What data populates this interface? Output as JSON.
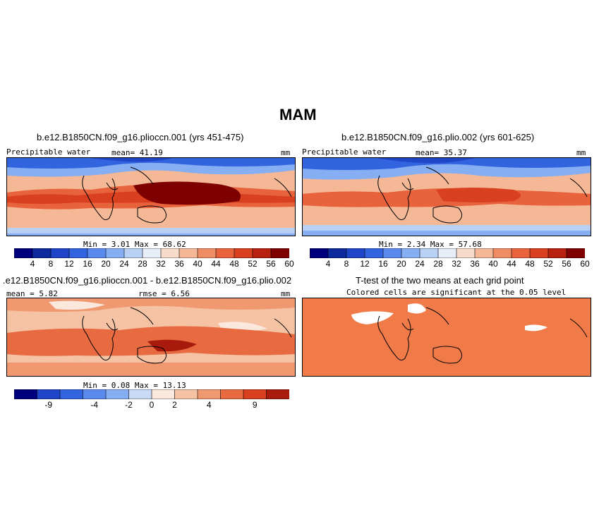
{
  "figure": {
    "title": "MAM"
  },
  "panels": {
    "p1": {
      "title": "b.e12.B1850CN.f09_g16.plioccn.001 (yrs 451-475)",
      "left_label": "Precipitable water",
      "mean_text": "mean=  41.19",
      "unit": "mm",
      "minmax_text": "Min =   3.01 Max =  68.62"
    },
    "p2": {
      "title": "b.e12.B1850CN.f09_g16.plio.002 (yrs 601-625)",
      "left_label": "Precipitable water",
      "mean_text": "mean=  35.37",
      "unit": "mm",
      "minmax_text": "Min =   2.34 Max =  57.68"
    },
    "p3": {
      "title": ".e12.B1850CN.f09_g16.plioccn.001 - b.e12.B1850CN.f09_g16.plio.002",
      "mean_text": "mean =   5.82",
      "rmse_text": "rmse =   6.56",
      "unit": "mm",
      "minmax_text": "Min =   0.08 Max =  13.13"
    },
    "p4": {
      "title": "T-test of the two means at each grid point",
      "subtitle": "Colored cells are significant at the 0.05 level"
    }
  },
  "colorbars": {
    "absolute": {
      "colors": [
        "#00007f",
        "#0d2a9c",
        "#1f46c8",
        "#3364e0",
        "#5a8af0",
        "#86aef2",
        "#b8d0f4",
        "#e8eef8",
        "#f8dccb",
        "#f5b896",
        "#f08c64",
        "#e8623c",
        "#d8401f",
        "#b8200f",
        "#7f0000"
      ],
      "ticks": [
        "4",
        "8",
        "12",
        "16",
        "20",
        "24",
        "28",
        "32",
        "36",
        "40",
        "44",
        "48",
        "52",
        "56",
        "60"
      ]
    },
    "difference": {
      "colors": [
        "#00007f",
        "#1f46c8",
        "#3364e0",
        "#5a8af0",
        "#86aef2",
        "#c8daf5",
        "#fbe8dc",
        "#f6c2a4",
        "#f09870",
        "#e86a40",
        "#d8401f",
        "#a81a0c"
      ],
      "ticks": [
        "-9",
        "-4",
        "-2",
        "0",
        "2",
        "4",
        "9"
      ]
    }
  },
  "colors": {
    "significant": "#f07a48",
    "not_significant": "#ffffff",
    "coast": "#000000"
  }
}
